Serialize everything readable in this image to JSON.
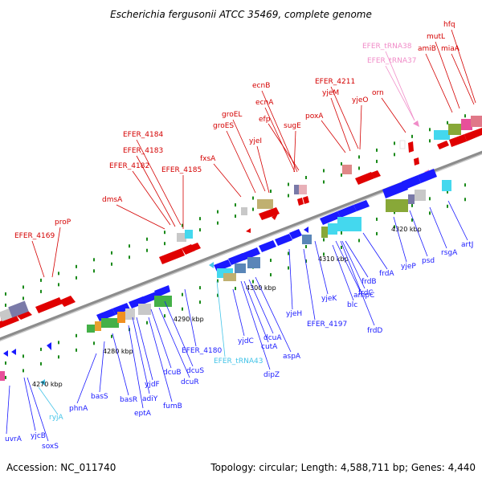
{
  "title": "Escherichia fergusonii ATCC 35469, complete genome",
  "footer": {
    "accession": "Accession: NC_011740",
    "summary": "Topology: circular; Length: 4,588,711 bp; Genes: 4,440"
  },
  "colors": {
    "forward_label": "#d40000",
    "reverse_label": "#1a1aff",
    "trna_forward": "#f08cc8",
    "trna_reverse": "#44c4e8",
    "backbone": "#909090",
    "tick": "#1a8a1a"
  },
  "position_markers": [
    "4270 kbp",
    "4280 kbp",
    "4290 kbp",
    "4300 kbp",
    "4310 kbp",
    "4320 kbp"
  ],
  "forward_labels": [
    "EFER_4169",
    "proP",
    "dmsA",
    "EFER_4182",
    "EFER_4183",
    "EFER_4184",
    "EFER_4185",
    "fxsA",
    "groES",
    "groEL",
    "yjeI",
    "efp",
    "ecnA",
    "ecnB",
    "sugE",
    "poxA",
    "yjeM",
    "EFER_4211",
    "yjeO",
    "orn",
    "amiB",
    "mutL",
    "miaA",
    "hfq"
  ],
  "trna_forward_labels": [
    "EFER_tRNA38",
    "EFER_tRNA37"
  ],
  "reverse_labels": [
    "uvrA",
    "yjcB",
    "soxS",
    "phnA",
    "basS",
    "basR",
    "eptA",
    "adiY",
    "yjdF",
    "fumB",
    "dcuB",
    "dcuR",
    "dcuS",
    "EFER_4180",
    "yjdC",
    "dipZ",
    "cutA",
    "dcuA",
    "aspA",
    "yjeH",
    "EFER_4197",
    "yjeK",
    "blc",
    "ampC",
    "frdD",
    "frdC",
    "frdB",
    "frdA",
    "yjeP",
    "psd",
    "rsgA",
    "artJ"
  ],
  "trna_reverse_labels": [
    "ryjA",
    "EFER_tRNA43"
  ]
}
